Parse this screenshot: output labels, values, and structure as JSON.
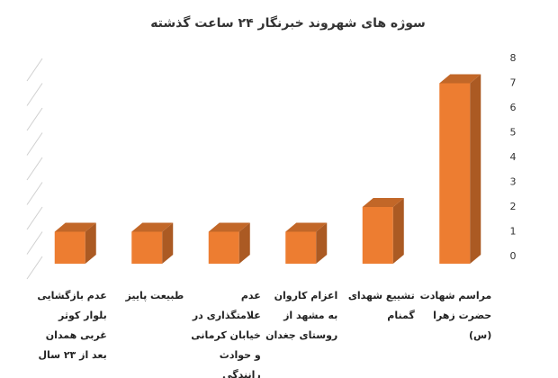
{
  "chart_data": {
    "type": "bar3d",
    "title": "سوژه های شهروند خبرنگار ۲۴ ساعت گذشته",
    "categories": [
      "مراسم شهادت حضرت زهرا (س)",
      "تشییع شهدای گمنام",
      "اعزام کاروان به مشهد از روستای جغدان",
      "عدم علامتگذاری در خیابان کرمانی و حوادث رانندگی",
      "طبیعت پاییز",
      "عدم بازگشایی بلوار کوثر غربی همدان بعد از ۲۳ سال"
    ],
    "values": [
      7,
      2,
      1,
      1,
      1,
      1
    ],
    "color": "#ed7d31",
    "ylim": [
      0,
      8
    ],
    "yticks": [
      0,
      1,
      2,
      3,
      4,
      5,
      6,
      7,
      8
    ],
    "grid": true
  }
}
